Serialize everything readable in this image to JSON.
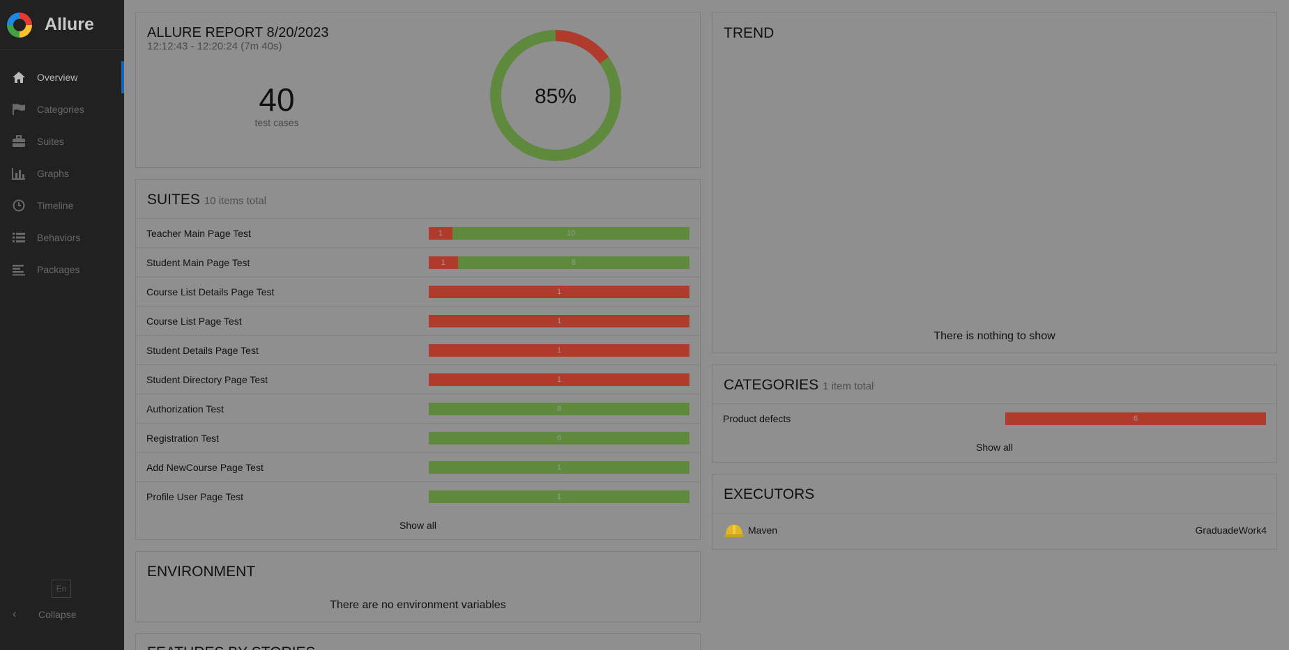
{
  "colors": {
    "failed": "#b03a2b",
    "passed": "#5f8a3e",
    "sidebar": "#212121",
    "content_bg": "#8f8f8f",
    "active_accent": "#1565c0"
  },
  "brand": {
    "name": "Allure"
  },
  "sidebar": {
    "items": [
      {
        "label": "Overview",
        "icon": "home-icon",
        "active": true
      },
      {
        "label": "Categories",
        "icon": "flag-icon",
        "active": false
      },
      {
        "label": "Suites",
        "icon": "briefcase-icon",
        "active": false
      },
      {
        "label": "Graphs",
        "icon": "bar-chart-icon",
        "active": false
      },
      {
        "label": "Timeline",
        "icon": "clock-icon",
        "active": false
      },
      {
        "label": "Behaviors",
        "icon": "list-icon",
        "active": false
      },
      {
        "label": "Packages",
        "icon": "align-left-icon",
        "active": false
      }
    ],
    "language": "En",
    "collapse_label": "Collapse"
  },
  "summary": {
    "title": "ALLURE REPORT 8/20/2023",
    "time_range": "12:12:43 - 12:20:24 (7m 40s)",
    "count": "40",
    "count_label": "test cases",
    "percent": "85%",
    "donut": {
      "passed_fraction": 0.85,
      "failed_fraction": 0.15
    }
  },
  "trend": {
    "title": "TREND",
    "empty": "There is nothing to show"
  },
  "suites": {
    "title": "SUITES",
    "subtitle": "10 items total",
    "items": [
      {
        "name": "Teacher Main Page Test",
        "failed": 1,
        "passed": 10
      },
      {
        "name": "Student Main Page Test",
        "failed": 1,
        "passed": 8
      },
      {
        "name": "Course List Details Page Test",
        "failed": 1,
        "passed": 0
      },
      {
        "name": "Course List Page Test",
        "failed": 1,
        "passed": 0
      },
      {
        "name": "Student Details Page Test",
        "failed": 1,
        "passed": 0
      },
      {
        "name": "Student Directory Page Test",
        "failed": 1,
        "passed": 0
      },
      {
        "name": "Authorization Test",
        "failed": 0,
        "passed": 8
      },
      {
        "name": "Registration Test",
        "failed": 0,
        "passed": 6
      },
      {
        "name": "Add NewCourse Page Test",
        "failed": 0,
        "passed": 1
      },
      {
        "name": "Profile User Page Test",
        "failed": 0,
        "passed": 1
      }
    ],
    "show_all": "Show all"
  },
  "categories": {
    "title": "CATEGORIES",
    "subtitle": "1 item total",
    "items": [
      {
        "name": "Product defects",
        "failed": 6,
        "passed": 0
      }
    ],
    "show_all": "Show all"
  },
  "executors": {
    "title": "EXECUTORS",
    "name": "Maven",
    "icon": "hard-hat-icon",
    "build": "GraduadeWork4"
  },
  "environment": {
    "title": "ENVIRONMENT",
    "empty": "There are no environment variables"
  },
  "features": {
    "title": "FEATURES BY STORIES"
  }
}
